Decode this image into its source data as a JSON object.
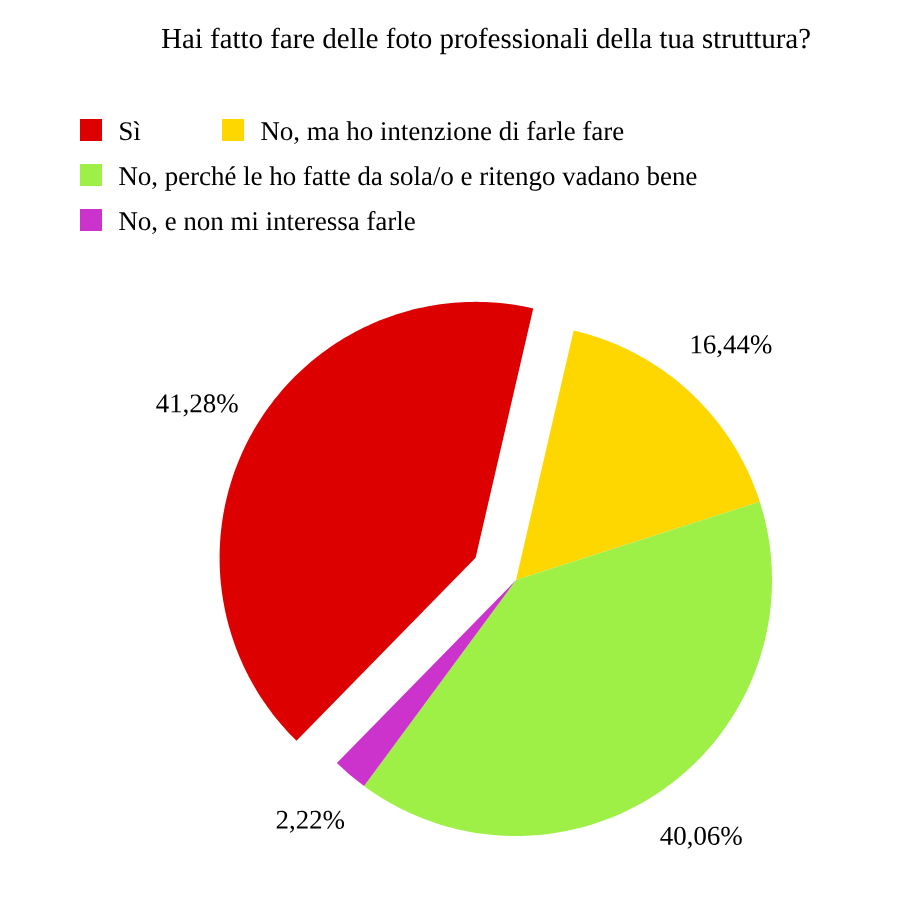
{
  "chart_data": {
    "type": "pie",
    "title": "Hai fatto fare delle foto professionali della tua struttura?",
    "categories": [
      "Sì",
      "No, ma ho intenzione di farle fare",
      "No, perché le ho fatte da sola/o e ritengo vadano bene",
      "No, e non mi interessa farle"
    ],
    "values": [
      41.28,
      16.44,
      40.06,
      2.22
    ],
    "colors": [
      "#dc0000",
      "#ffd700",
      "#9ef047",
      "#cc33cc"
    ],
    "value_labels": [
      "41,28%",
      "16,44%",
      "40,06%",
      "2,22%"
    ],
    "legend": "top"
  }
}
